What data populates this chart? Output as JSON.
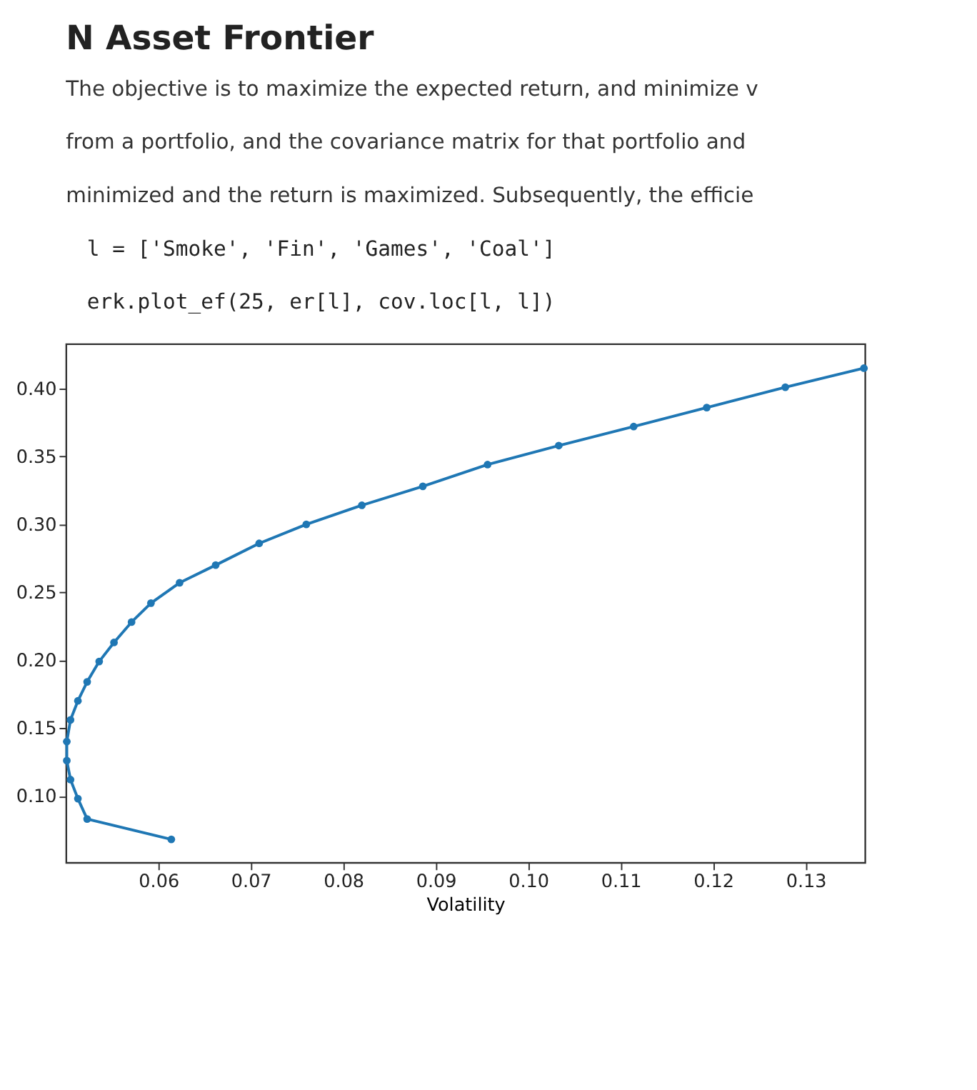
{
  "chart_data": {
    "type": "line",
    "title": "N Asset Frontier",
    "annotations": [
      "The objective is to maximize the expected return, and minimize v",
      "from a portfolio, and the covariance matrix for that portfolio and",
      "minimized and the return is maximized. Subsequently, the efficie",
      "l = ['Smoke', 'Fin', 'Games', 'Coal']",
      "erk.plot_ef(25, er[l], cov.loc[l, l])"
    ],
    "xlabel": "Volatility",
    "x": [
      0.0614,
      0.0523,
      0.0513,
      0.0505,
      0.0501,
      0.0501,
      0.0505,
      0.0513,
      0.0523,
      0.0536,
      0.0552,
      0.0571,
      0.0592,
      0.0623,
      0.0662,
      0.0709,
      0.076,
      0.082,
      0.0886,
      0.0956,
      0.1033,
      0.1114,
      0.1193,
      0.1278,
      0.1363
    ],
    "series": [
      {
        "color": "#1f77b4",
        "values": [
          0.068,
          0.083,
          0.098,
          0.112,
          0.126,
          0.14,
          0.156,
          0.17,
          0.184,
          0.199,
          0.213,
          0.228,
          0.242,
          0.257,
          0.27,
          0.286,
          0.3,
          0.314,
          0.328,
          0.344,
          0.358,
          0.372,
          0.386,
          0.401,
          0.415
        ]
      }
    ],
    "xlim": [
      0.05,
      0.1364
    ],
    "ylim": [
      0.051,
      0.433
    ],
    "xticks": [
      {
        "value": 0.06,
        "label": "0.06"
      },
      {
        "value": 0.07,
        "label": "0.07"
      },
      {
        "value": 0.08,
        "label": "0.08"
      },
      {
        "value": 0.09,
        "label": "0.09"
      },
      {
        "value": 0.1,
        "label": "0.10"
      },
      {
        "value": 0.11,
        "label": "0.11"
      },
      {
        "value": 0.12,
        "label": "0.12"
      },
      {
        "value": 0.13,
        "label": "0.13"
      }
    ],
    "yticks": [
      {
        "value": 0.1,
        "label": "0.10"
      },
      {
        "value": 0.15,
        "label": "0.15"
      },
      {
        "value": 0.2,
        "label": "0.20"
      },
      {
        "value": 0.25,
        "label": "0.25"
      },
      {
        "value": 0.3,
        "label": "0.30"
      },
      {
        "value": 0.35,
        "label": "0.35"
      },
      {
        "value": 0.4,
        "label": "0.40"
      }
    ],
    "marker": "circle",
    "grid": false
  }
}
